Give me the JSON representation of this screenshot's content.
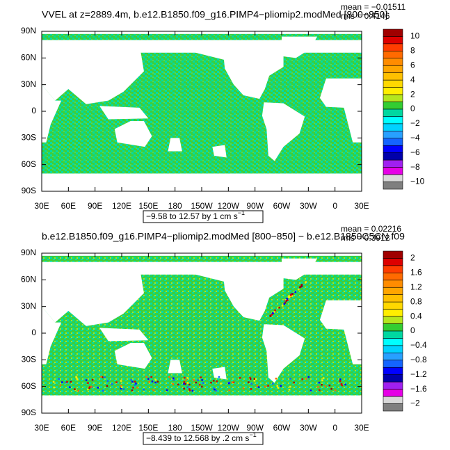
{
  "axes": {
    "lat_labels": [
      "90N",
      "60N",
      "30N",
      "0",
      "30S",
      "60S",
      "90S"
    ],
    "lon_labels": [
      "30E",
      "60E",
      "90E",
      "120E",
      "150E",
      "180",
      "150W",
      "120W",
      "90W",
      "60W",
      "30W",
      "0",
      "30E"
    ]
  },
  "panels": [
    {
      "title": "VVEL at z=2889.4m, b.e12.B1850.f09_g16.PIMP4−pliomip2.modMed [800−850]",
      "mean": "mean = −0.01511",
      "rms": "rms = 0.4146",
      "range_text": "−9.58 to 12.57 by 1 cm s",
      "range_exp": "−1",
      "colorbar": {
        "labels": [
          "10",
          "8",
          "6",
          "4",
          "2",
          "0",
          "−2",
          "−4",
          "−6",
          "−8",
          "−10"
        ],
        "colors": [
          "#a00000",
          "#dd0000",
          "#ff3c00",
          "#ff6a00",
          "#ff8c00",
          "#ffa500",
          "#ffc000",
          "#ffd800",
          "#ffee00",
          "#b4e61e",
          "#32cd32",
          "#00d7a0",
          "#00ffff",
          "#00d2ff",
          "#28a0ff",
          "#1464ff",
          "#0000ff",
          "#0000aa",
          "#a020f0",
          "#e600e6",
          "#d9d9d9",
          "#7f7f7f"
        ]
      }
    },
    {
      "title": "b.e12.B1850.f09_g16.PIMP4−pliomip2.modMed [800−850] − b.e12.B1850C5CN.f09",
      "mean": "mean = 0.02216",
      "rms": "rms = 0.3912",
      "range_text": "−8.439 to 12.568 by .2 cm s",
      "range_exp": "−1",
      "colorbar": {
        "labels": [
          "2",
          "1.6",
          "1.2",
          "0.8",
          "0.4",
          "0",
          "−0.4",
          "−0.8",
          "−1.2",
          "−1.6",
          "−2"
        ],
        "colors": [
          "#a00000",
          "#dd0000",
          "#ff3c00",
          "#ff6a00",
          "#ff8c00",
          "#ffa500",
          "#ffc000",
          "#ffd800",
          "#ffee00",
          "#b4e61e",
          "#32cd32",
          "#00d7a0",
          "#00ffff",
          "#00d2ff",
          "#28a0ff",
          "#1464ff",
          "#0000ff",
          "#0000aa",
          "#a020f0",
          "#e600e6",
          "#d9d9d9",
          "#7f7f7f"
        ]
      }
    }
  ]
}
